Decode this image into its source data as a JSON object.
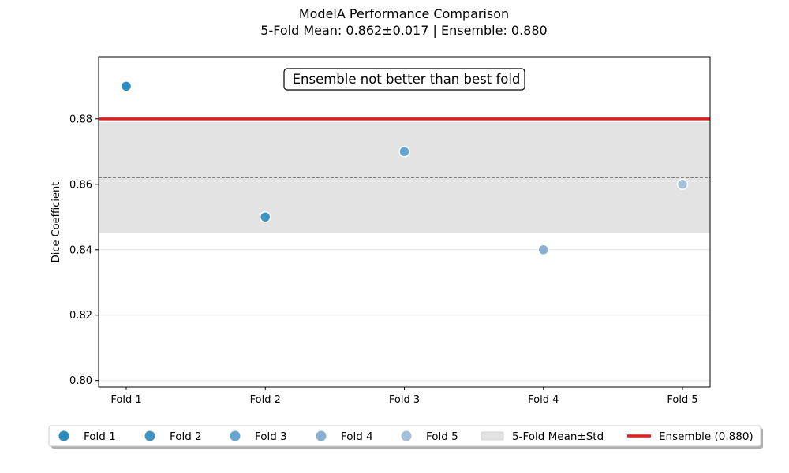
{
  "chart_data": {
    "type": "scatter",
    "title": "ModelA Performance Comparison",
    "subtitle": "5-Fold Mean: 0.862±0.017 | Ensemble: 0.880",
    "xlabel": "",
    "ylabel": "Dice Coefficient",
    "categories": [
      "Fold 1",
      "Fold 2",
      "Fold 3",
      "Fold 4",
      "Fold 5"
    ],
    "ylim": [
      0.798,
      0.899
    ],
    "yticks": [
      "0.80",
      "0.82",
      "0.84",
      "0.86",
      "0.88"
    ],
    "ytick_values": [
      0.8,
      0.82,
      0.84,
      0.86,
      0.88
    ],
    "grid": "y",
    "series": [
      {
        "name": "Fold 1",
        "x": "Fold 1",
        "value": 0.89,
        "color": "#2b8cbe"
      },
      {
        "name": "Fold 2",
        "x": "Fold 2",
        "value": 0.85,
        "color": "#3f94c4"
      },
      {
        "name": "Fold 3",
        "x": "Fold 3",
        "value": 0.87,
        "color": "#66a5d0"
      },
      {
        "name": "Fold 4",
        "x": "Fold 4",
        "value": 0.84,
        "color": "#89b0d3"
      },
      {
        "name": "Fold 5",
        "x": "Fold 5",
        "value": 0.86,
        "color": "#a6bfdb"
      }
    ],
    "mean_band": {
      "name": "5-Fold Mean±Std",
      "mean": 0.862,
      "std": 0.017,
      "color": "#e3e3e3"
    },
    "ensemble": {
      "name": "Ensemble (0.880)",
      "value": 0.88,
      "color": "#e41a1c"
    },
    "annotation": "Ensemble not better than best fold",
    "legend_position": "bottom"
  }
}
